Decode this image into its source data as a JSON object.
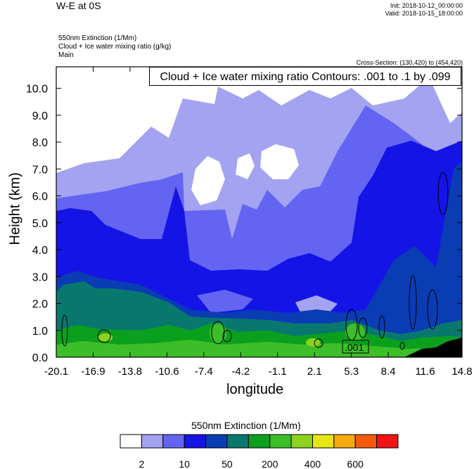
{
  "header": {
    "title": "W-E at 0S",
    "init": "Init: 2018-10-12_00:00:00",
    "valid": "Valid: 2018-10-15_18:00:00",
    "var1": "550nm Extinction   (1/Mm)",
    "var2": "Cloud + Ice water mixing ratio   (g/kg)",
    "var3": "Main",
    "cross_section": "Cross-Section: (130,420) to (454,420)",
    "contour_info": "Cloud + Ice water mixing ratio Contours: .001 to .1 by .099",
    "contour_label": ".001"
  },
  "chart_data": {
    "type": "heatmap",
    "xlabel": "longitude",
    "ylabel": "Height (km)",
    "xlim": [
      -20.1,
      14.8
    ],
    "ylim": [
      0.0,
      10.8
    ],
    "xticks": [
      "-20.1",
      "-16.9",
      "-13.8",
      "-10.6",
      "-7.4",
      "-4.2",
      "-1.1",
      "2.1",
      "5.3",
      "8.4",
      "11.6",
      "14.8"
    ],
    "yticks": [
      "0.0",
      "1.0",
      "2.0",
      "3.0",
      "4.0",
      "5.0",
      "6.0",
      "7.0",
      "8.0",
      "9.0",
      "10.0"
    ],
    "colorbar": {
      "title": "550nm Extinction  (1/Mm)",
      "colors": [
        "#ffffff",
        "#a3a3f2",
        "#6464f2",
        "#1414e6",
        "#0a3cb4",
        "#08786e",
        "#0aa01e",
        "#3cbe28",
        "#8cd21e",
        "#e6e614",
        "#f5aa0a",
        "#f55a0a",
        "#f01414"
      ],
      "tick_labels": [
        "2",
        "10",
        "50",
        "200",
        "400",
        "600"
      ]
    }
  }
}
